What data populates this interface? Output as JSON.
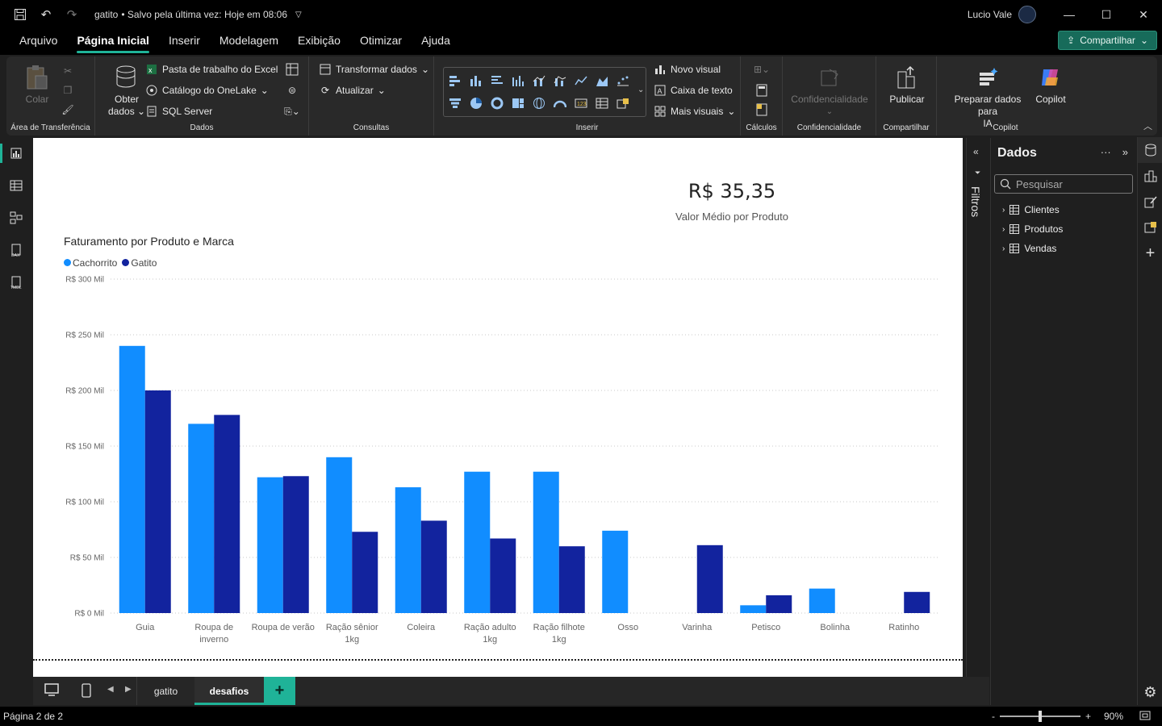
{
  "titlebar": {
    "title": "gatito",
    "status": "• Salvo pela última vez: Hoje em 08:06",
    "user": "Lucio Vale"
  },
  "menu": {
    "items": [
      "Arquivo",
      "Página Inicial",
      "Inserir",
      "Modelagem",
      "Exibição",
      "Otimizar",
      "Ajuda"
    ],
    "active": "Página Inicial",
    "share": "Compartilhar"
  },
  "ribbon": {
    "clipboard": {
      "paste": "Colar",
      "label": "Área de Transferência"
    },
    "dados": {
      "get_data": "Obter",
      "get_data2": "dados",
      "excel": "Pasta de trabalho do Excel",
      "onelake": "Catálogo do OneLake",
      "sql": "SQL Server",
      "label": "Dados"
    },
    "consultas": {
      "transform": "Transformar dados",
      "refresh": "Atualizar",
      "label": "Consultas"
    },
    "inserir": {
      "new_visual": "Novo visual",
      "text_box": "Caixa de texto",
      "more_visuals": "Mais visuais",
      "label": "Inserir"
    },
    "calculos": {
      "label": "Cálculos"
    },
    "confidencialidade": {
      "button": "Confidencialidade",
      "label": "Confidencialidade"
    },
    "compartilhar": {
      "publish": "Publicar",
      "label": "Compartilhar"
    },
    "copilot": {
      "prepare": "Preparar dados para",
      "prepare2": "IA",
      "copilot": "Copilot",
      "label": "Copilot"
    }
  },
  "canvas": {
    "kpi_value": "R$ 35,35",
    "kpi_label": "Valor Médio por Produto"
  },
  "chart_data": {
    "type": "bar",
    "title": "Faturamento por Produto e Marca",
    "categories": [
      "Guia",
      "Roupa de inverno",
      "Roupa de verão",
      "Ração sênior 1kg",
      "Coleira",
      "Ração adulto 1kg",
      "Ração filhote 1kg",
      "Osso",
      "Varinha",
      "Petisco",
      "Bolinha",
      "Ratinho"
    ],
    "category_lines": [
      [
        "Guia"
      ],
      [
        "Roupa de",
        "inverno"
      ],
      [
        "Roupa de verão"
      ],
      [
        "Ração sênior",
        "1kg"
      ],
      [
        "Coleira"
      ],
      [
        "Ração adulto",
        "1kg"
      ],
      [
        "Ração filhote",
        "1kg"
      ],
      [
        "Osso"
      ],
      [
        "Varinha"
      ],
      [
        "Petisco"
      ],
      [
        "Bolinha"
      ],
      [
        "Ratinho"
      ]
    ],
    "series": [
      {
        "name": "Cachorrito",
        "color": "#118dff",
        "values": [
          240,
          170,
          122,
          140,
          113,
          127,
          127,
          74,
          0,
          7,
          22,
          0
        ]
      },
      {
        "name": "Gatito",
        "color": "#12239e",
        "values": [
          200,
          178,
          123,
          73,
          83,
          67,
          60,
          0,
          61,
          16,
          0,
          19
        ]
      }
    ],
    "y_ticks": [
      "R$ 0 Mil",
      "R$ 50 Mil",
      "R$ 100 Mil",
      "R$ 150 Mil",
      "R$ 200 Mil",
      "R$ 250 Mil",
      "R$ 300 Mil"
    ],
    "ylim": [
      0,
      300
    ],
    "grid": true,
    "legend": "top-left"
  },
  "filters": {
    "label": "Filtros"
  },
  "datapane": {
    "title": "Dados",
    "search_placeholder": "Pesquisar",
    "tables": [
      "Clientes",
      "Produtos",
      "Vendas"
    ]
  },
  "tabs": {
    "pages": [
      "gatito",
      "desafios"
    ],
    "active": "desafios",
    "add": "+"
  },
  "status": {
    "page": "Página 2 de 2",
    "zoom": "90%",
    "zoom_fraction": 0.5
  }
}
